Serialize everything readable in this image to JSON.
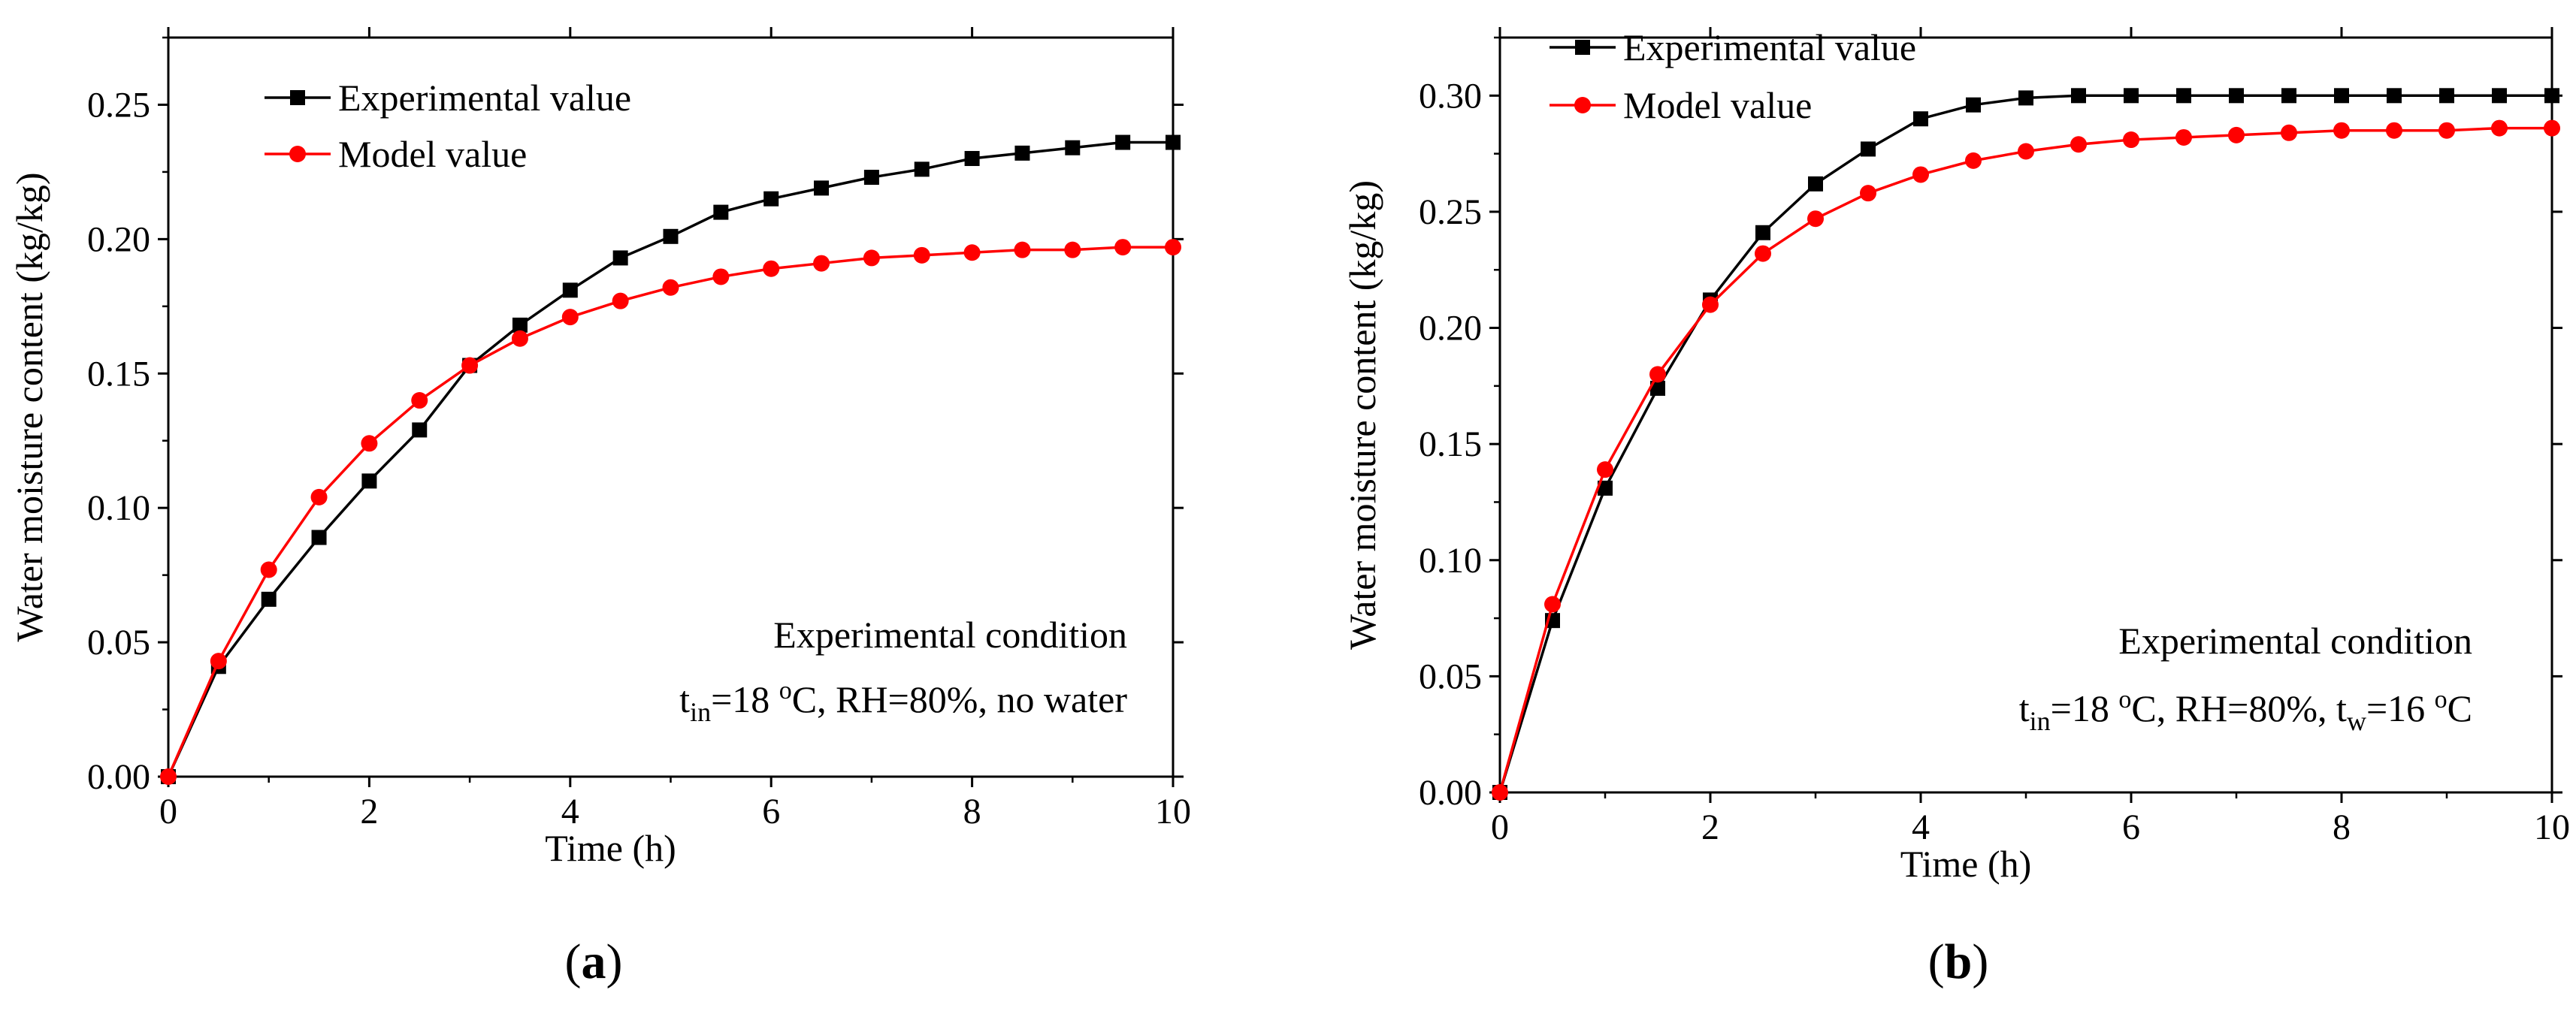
{
  "chart_data": [
    {
      "type": "line",
      "panel": "a",
      "panel_label": {
        "open": "(",
        "letter": "a",
        "close": ")"
      },
      "xlabel": "Time (h)",
      "ylabel": "Water moisture content (kg/kg)",
      "xlim": [
        0,
        10
      ],
      "ylim": [
        0,
        0.275
      ],
      "xticks": [
        0,
        2,
        4,
        6,
        8,
        10
      ],
      "xtick_labels": [
        "0",
        "2",
        "4",
        "6",
        "8",
        "10"
      ],
      "yticks": [
        0,
        0.05,
        0.1,
        0.15,
        0.2,
        0.25
      ],
      "ytick_labels": [
        "0.00",
        "0.05",
        "0.10",
        "0.15",
        "0.20",
        "0.25"
      ],
      "legend_position": "top-left",
      "x": [
        0,
        0.5,
        1,
        1.5,
        2,
        2.5,
        3,
        3.5,
        4,
        4.5,
        5,
        5.5,
        6,
        6.5,
        7,
        7.5,
        8,
        8.5,
        9,
        9.5,
        10
      ],
      "series": [
        {
          "name": "Experimental value",
          "color": "#000000",
          "marker": "square",
          "values": [
            0.0,
            0.041,
            0.066,
            0.089,
            0.11,
            0.129,
            0.153,
            0.168,
            0.181,
            0.193,
            0.201,
            0.21,
            0.215,
            0.219,
            0.223,
            0.226,
            0.23,
            0.232,
            0.234,
            0.236,
            0.236
          ]
        },
        {
          "name": "Model value",
          "color": "#ff0000",
          "marker": "circle",
          "values": [
            0.0,
            0.043,
            0.077,
            0.104,
            0.124,
            0.14,
            0.153,
            0.163,
            0.171,
            0.177,
            0.182,
            0.186,
            0.189,
            0.191,
            0.193,
            0.194,
            0.195,
            0.196,
            0.196,
            0.197,
            0.197
          ]
        }
      ],
      "annotation": {
        "title": "Experimental condition",
        "t_symbol": "t",
        "t_subscript": "in",
        "t_value": "=18 ",
        "deg_sup": "o",
        "rest": "C, RH=80%, no water",
        "w_symbol": "",
        "w_subscript": "",
        "w_value": "",
        "w_deg_sup": "",
        "w_rest": ""
      }
    },
    {
      "type": "line",
      "panel": "b",
      "panel_label": {
        "open": "(",
        "letter": "b",
        "close": ")"
      },
      "xlabel": "Time (h)",
      "ylabel": "Water moisture content (kg/kg)",
      "xlim": [
        0,
        10
      ],
      "ylim": [
        0,
        0.325
      ],
      "xticks": [
        0,
        2,
        4,
        6,
        8,
        10
      ],
      "xtick_labels": [
        "0",
        "2",
        "4",
        "6",
        "8",
        "10"
      ],
      "yticks": [
        0,
        0.05,
        0.1,
        0.15,
        0.2,
        0.25,
        0.3
      ],
      "ytick_labels": [
        "0.00",
        "0.05",
        "0.10",
        "0.15",
        "0.20",
        "0.25",
        "0.30"
      ],
      "legend_position": "top-left",
      "x": [
        0,
        0.5,
        1,
        1.5,
        2,
        2.5,
        3,
        3.5,
        4,
        4.5,
        5,
        5.5,
        6,
        6.5,
        7,
        7.5,
        8,
        8.5,
        9,
        9.5,
        10
      ],
      "series": [
        {
          "name": "Experimental value",
          "color": "#000000",
          "marker": "square",
          "values": [
            0.0,
            0.074,
            0.131,
            0.174,
            0.212,
            0.241,
            0.262,
            0.277,
            0.29,
            0.296,
            0.299,
            0.3,
            0.3,
            0.3,
            0.3,
            0.3,
            0.3,
            0.3,
            0.3,
            0.3,
            0.3
          ]
        },
        {
          "name": "Model value",
          "color": "#ff0000",
          "marker": "circle",
          "values": [
            0.0,
            0.081,
            0.139,
            0.18,
            0.21,
            0.232,
            0.247,
            0.258,
            0.266,
            0.272,
            0.276,
            0.279,
            0.281,
            0.282,
            0.283,
            0.284,
            0.285,
            0.285,
            0.285,
            0.286,
            0.286
          ]
        }
      ],
      "annotation": {
        "title": "Experimental condition",
        "t_symbol": "t",
        "t_subscript": "in",
        "t_value": "=18 ",
        "deg_sup": "o",
        "rest": "C, RH=80%, ",
        "w_symbol": "t",
        "w_subscript": "w",
        "w_value": "=16 ",
        "w_deg_sup": "o",
        "w_rest": "C"
      }
    }
  ]
}
